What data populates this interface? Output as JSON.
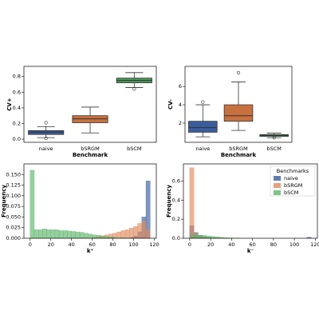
{
  "chart_data": [
    {
      "type": "box",
      "ylabel": "CV+",
      "xlabel": "Benchmark",
      "categories": [
        "naive",
        "bSRGM",
        "bSCM"
      ],
      "colors": [
        "#3b5d9c",
        "#c8713f",
        "#4a9957"
      ],
      "boxes": [
        {
          "whislo": 0.02,
          "q1": 0.06,
          "median": 0.09,
          "q3": 0.11,
          "whishi": 0.16,
          "fliers": [
            0.21,
            0.01
          ]
        },
        {
          "whislo": 0.08,
          "q1": 0.21,
          "median": 0.26,
          "q3": 0.3,
          "whishi": 0.41,
          "fliers": []
        },
        {
          "whislo": 0.66,
          "q1": 0.72,
          "median": 0.75,
          "q3": 0.78,
          "whishi": 0.85,
          "fliers": [
            0.64
          ]
        }
      ],
      "ylim": [
        -0.04,
        0.93
      ],
      "yticks": [
        {
          "value": 0,
          "label": "0.0"
        },
        {
          "value": 0.2,
          "label": "0.2"
        },
        {
          "value": 0.4,
          "label": "0.4"
        },
        {
          "value": 0.6,
          "label": "0.6"
        },
        {
          "value": 0.8,
          "label": "0.8"
        }
      ]
    },
    {
      "type": "box",
      "ylabel": "CV-",
      "xlabel": "Benchmark",
      "categories": [
        "naive",
        "bSRGM",
        "bSCM"
      ],
      "colors": [
        "#3b5d9c",
        "#c8713f",
        "#4a9957"
      ],
      "boxes": [
        {
          "whislo": 0.5,
          "q1": 1.0,
          "median": 1.5,
          "q3": 2.2,
          "whishi": 4.0,
          "fliers": [
            4.3
          ]
        },
        {
          "whislo": 1.2,
          "q1": 2.2,
          "median": 2.8,
          "q3": 4.0,
          "whishi": 6.5,
          "fliers": [
            7.5
          ]
        },
        {
          "whislo": 0.4,
          "q1": 0.55,
          "median": 0.65,
          "q3": 0.75,
          "whishi": 0.9,
          "fliers": [
            0.4
          ]
        }
      ],
      "ylim": [
        -0.1,
        8.2
      ],
      "yticks": [
        2,
        4,
        6
      ]
    },
    {
      "type": "histogram",
      "ylabel": "Frequency",
      "xlabel": "k⁺",
      "bins": [
        0,
        4,
        8,
        12,
        16,
        20,
        24,
        28,
        32,
        36,
        40,
        44,
        48,
        52,
        56,
        60,
        64,
        68,
        72,
        76,
        80,
        84,
        88,
        92,
        96,
        100,
        104,
        108,
        112,
        116,
        120
      ],
      "series": [
        {
          "name": "naive",
          "color": "#3b5d9c",
          "values": [
            0,
            0,
            0,
            0,
            0,
            0,
            0,
            0,
            0,
            0,
            0,
            0,
            0,
            0,
            0,
            0,
            0,
            0,
            0,
            0,
            0,
            0,
            0,
            0,
            0.002,
            0.005,
            0.015,
            0.05,
            0.135,
            0
          ]
        },
        {
          "name": "bSRGM",
          "color": "#e08a5e",
          "values": [
            0,
            0,
            0,
            0,
            0,
            0,
            0,
            0,
            0,
            0,
            0,
            0,
            0,
            0,
            0,
            0.002,
            0.004,
            0.006,
            0.008,
            0.01,
            0.012,
            0.015,
            0.018,
            0.02,
            0.024,
            0.028,
            0.035,
            0.04,
            0.02,
            0
          ]
        },
        {
          "name": "bSCM",
          "color": "#5db56a",
          "values": [
            0.16,
            0.02,
            0.02,
            0.022,
            0.02,
            0.02,
            0.02,
            0.018,
            0.018,
            0.017,
            0.016,
            0.015,
            0.014,
            0.012,
            0.01,
            0.008,
            0.007,
            0.005,
            0.004,
            0.003,
            0.002,
            0.001,
            0.001,
            0.0005,
            0,
            0,
            0,
            0,
            0,
            0
          ]
        }
      ],
      "xlim": [
        -6,
        122
      ],
      "xticks": [
        0,
        20,
        40,
        60,
        80,
        100,
        120
      ],
      "ylim": [
        0,
        0.175
      ],
      "yticks": [
        {
          "value": 0,
          "label": "0.000"
        },
        {
          "value": 0.025,
          "label": "0.025"
        },
        {
          "value": 0.05,
          "label": "0.050"
        },
        {
          "value": 0.075,
          "label": "0.075"
        },
        {
          "value": 0.1,
          "label": "0.100"
        },
        {
          "value": 0.125,
          "label": "0.125"
        },
        {
          "value": 0.15,
          "label": "0.150"
        }
      ]
    },
    {
      "type": "histogram",
      "ylabel": "Frequency",
      "xlabel": "k⁻",
      "legend_title": "Benchmarks",
      "legend": "upper right",
      "bins": [
        0,
        4,
        8,
        12,
        16,
        20,
        24,
        28,
        32,
        36,
        40,
        44,
        48,
        52,
        56,
        60,
        64,
        68,
        72,
        76,
        80,
        84,
        88,
        92,
        96,
        100,
        104,
        108,
        112,
        116,
        120
      ],
      "series": [
        {
          "name": "naive",
          "color": "#3b5d9c",
          "values": [
            0.13,
            0.06,
            0.03,
            0.015,
            0.008,
            0.004,
            0.002,
            0.001,
            0,
            0,
            0,
            0,
            0,
            0,
            0,
            0,
            0,
            0,
            0,
            0,
            0,
            0,
            0,
            0,
            0,
            0,
            0,
            0,
            0.01,
            0
          ]
        },
        {
          "name": "bSRGM",
          "color": "#e08a5e",
          "values": [
            0.74,
            0.05,
            0.02,
            0.01,
            0.005,
            0.002,
            0,
            0,
            0,
            0,
            0,
            0,
            0,
            0,
            0,
            0,
            0,
            0,
            0,
            0,
            0,
            0,
            0,
            0,
            0,
            0,
            0,
            0,
            0,
            0
          ]
        },
        {
          "name": "bSCM",
          "color": "#5db56a",
          "values": [
            0.03,
            0.04,
            0.03,
            0.03,
            0.025,
            0.02,
            0.015,
            0.01,
            0.006,
            0.004,
            0.002,
            0.001,
            0,
            0,
            0,
            0,
            0,
            0,
            0,
            0,
            0,
            0,
            0,
            0,
            0,
            0,
            0,
            0,
            0,
            0
          ]
        }
      ],
      "xlim": [
        -6,
        122
      ],
      "xticks": [
        0,
        20,
        40,
        60,
        80,
        100,
        120
      ],
      "ylim": [
        0,
        0.78
      ],
      "yticks": [
        {
          "value": 0,
          "label": "0.0"
        },
        {
          "value": 0.2,
          "label": "0.2"
        },
        {
          "value": 0.4,
          "label": "0.4"
        },
        {
          "value": 0.6,
          "label": "0.6"
        }
      ]
    }
  ]
}
